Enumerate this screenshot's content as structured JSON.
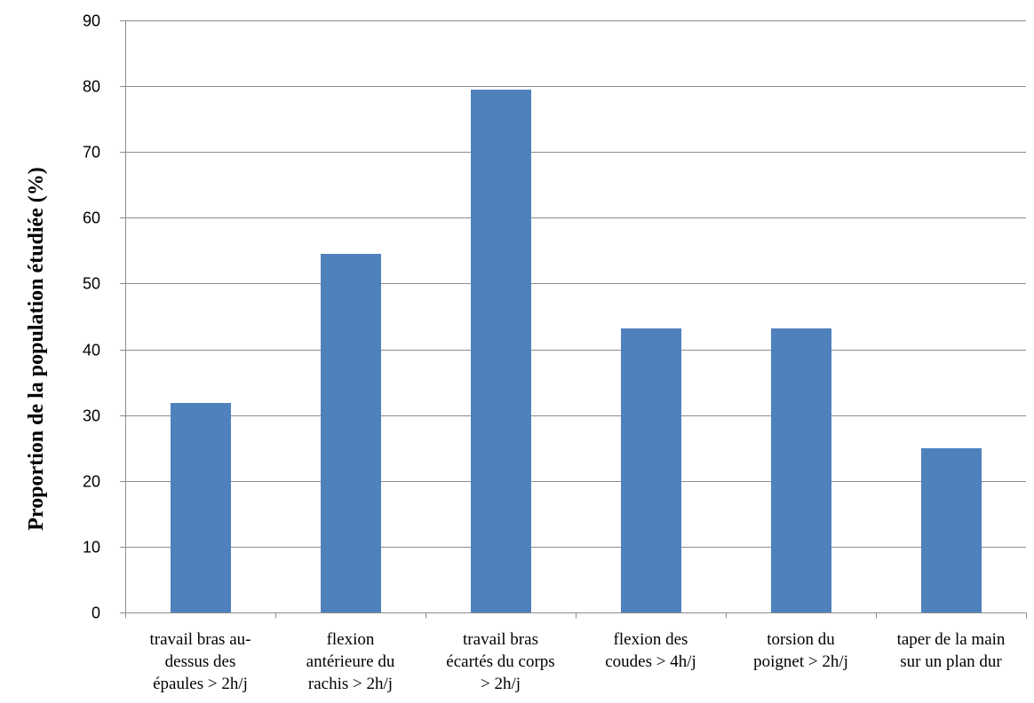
{
  "chart_data": {
    "type": "bar",
    "categories": [
      [
        "travail bras au-",
        "dessus des",
        "épaules > 2h/j"
      ],
      [
        "flexion",
        "antérieure du",
        "rachis > 2h/j"
      ],
      [
        "travail bras",
        "écartés du corps",
        "> 2h/j"
      ],
      [
        "flexion des",
        "coudes > 4h/j"
      ],
      [
        "torsion du",
        "poignet > 2h/j"
      ],
      [
        "taper de la main",
        "sur un plan dur"
      ]
    ],
    "values": [
      31.8,
      54.5,
      79.5,
      43.2,
      43.2,
      25.0
    ],
    "ylabel": "Proportion de la population étudiée  (%)",
    "xlabel": "",
    "ylim": [
      0,
      90
    ],
    "yticks": [
      0,
      10,
      20,
      30,
      40,
      50,
      60,
      70,
      80,
      90
    ],
    "grid": true,
    "legend": "none",
    "bar_color": "#4f81bd"
  }
}
